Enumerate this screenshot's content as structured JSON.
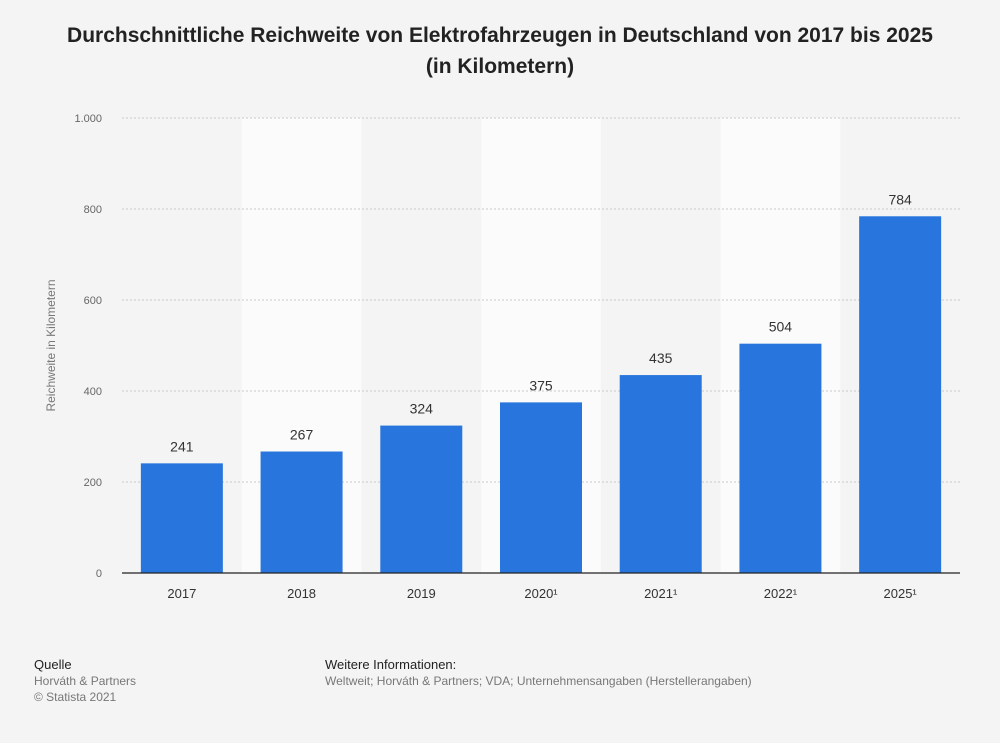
{
  "chart_data": {
    "type": "bar",
    "title": "Durchschnittliche Reichweite von Elektrofahrzeugen in Deutschland von 2017 bis 2025 (in Kilometern)",
    "xlabel": "",
    "ylabel": "Reichweite in Kilometern",
    "categories": [
      "2017",
      "2018",
      "2019",
      "2020¹",
      "2021¹",
      "2022¹",
      "2025¹"
    ],
    "values": [
      241,
      267,
      324,
      375,
      435,
      504,
      784
    ],
    "data_labels": [
      "241",
      "267",
      "324",
      "375",
      "435",
      "504",
      "784"
    ],
    "ylim": [
      0,
      1000
    ],
    "yticks": [
      0,
      200,
      400,
      600,
      800,
      1000
    ],
    "ytick_labels": [
      "0",
      "200",
      "400",
      "600",
      "800",
      "1.000"
    ],
    "grid": true,
    "bar_color": "#2876dd",
    "legend": "none"
  },
  "footer": {
    "source_heading": "Quelle",
    "source_lines": [
      "Horváth & Partners",
      "© Statista 2021"
    ],
    "info_heading": "Weitere Informationen:",
    "info_text": "Weltweit; Horváth & Partners; VDA; Unternehmensangaben (Herstellerangaben)"
  }
}
